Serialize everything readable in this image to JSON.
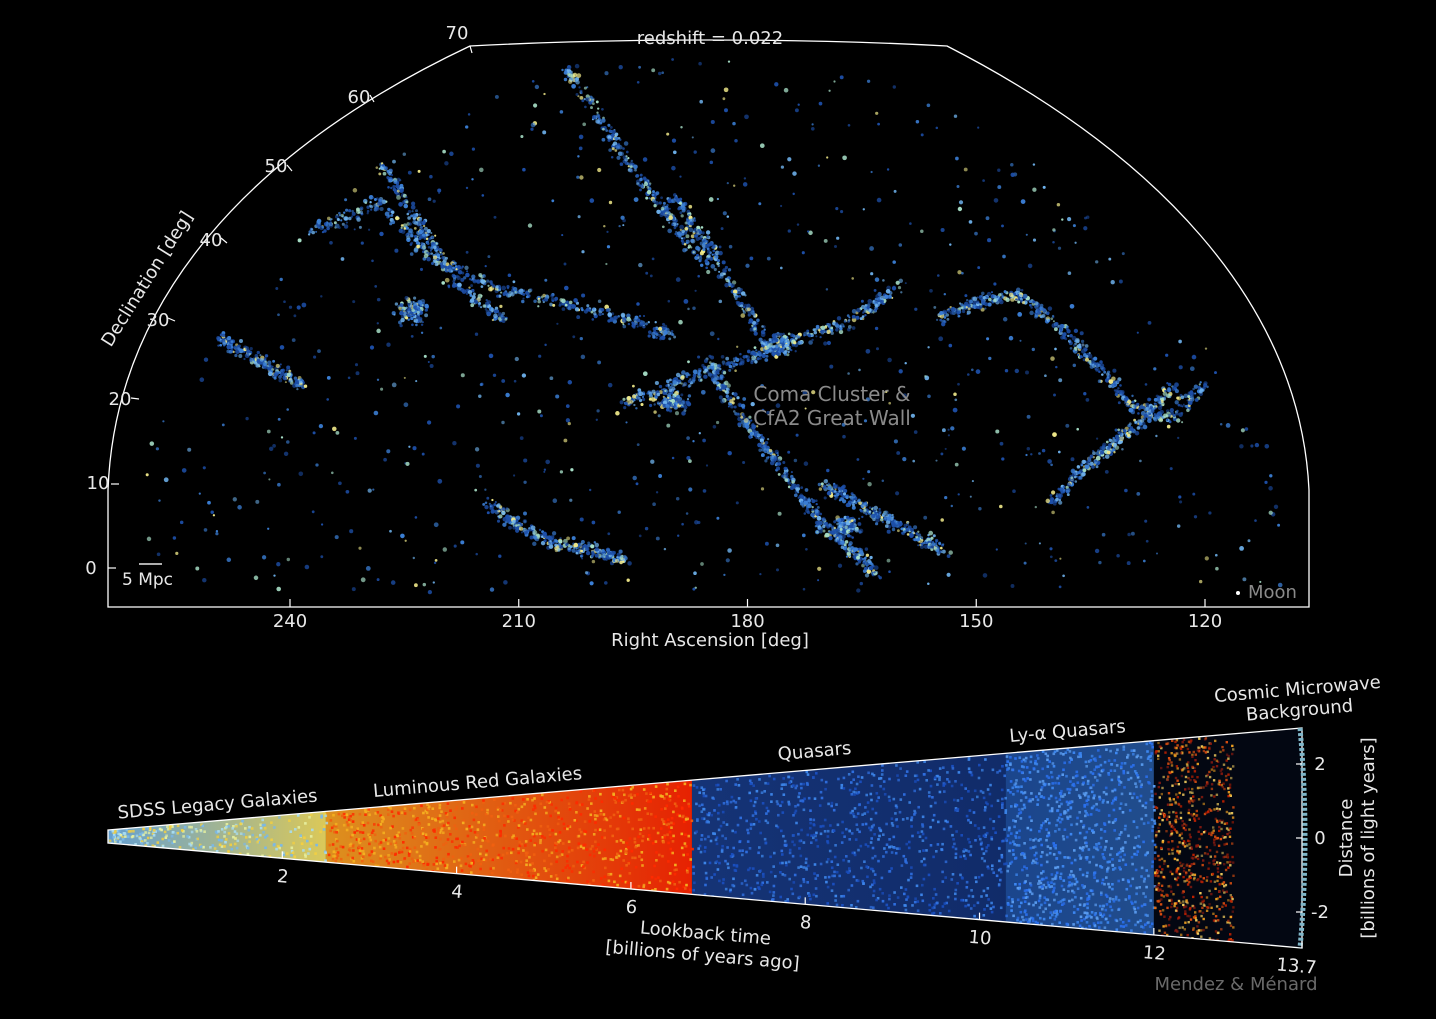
{
  "chart_data": [
    {
      "type": "scatter",
      "projection": "sky-wedge",
      "title": "redshift = 0.022",
      "xlabel": "Right Ascension [deg]",
      "ylabel": "Declination [deg]",
      "x_direction": "decreasing-left-to-right",
      "xlim": [
        265,
        105
      ],
      "ylim": [
        -5,
        70
      ],
      "xticks": [
        240,
        210,
        180,
        150,
        120
      ],
      "yticks": [
        0,
        10,
        20,
        30,
        40,
        50,
        60,
        70
      ],
      "grid": false,
      "point_colors": [
        "#1d4fa8",
        "#3b7fd6",
        "#6fb3ee",
        "#a8e0c8",
        "#f1ea8a"
      ],
      "filaments": [
        {
          "ra": [
            244,
            236,
            228,
            222,
            214,
            205,
            196,
            190
          ],
          "dec": [
            40,
            41,
            44,
            38,
            34,
            32,
            30,
            28
          ]
        },
        {
          "ra": [
            230,
            226,
            222,
            218,
            212
          ],
          "dec": [
            51,
            46,
            40,
            34,
            30
          ]
        },
        {
          "ra": [
            196,
            190,
            184,
            178,
            172,
            166,
            160
          ],
          "dec": [
            20,
            22,
            24,
            26,
            28,
            30,
            34
          ]
        },
        {
          "ra": [
            185,
            182,
            178,
            174,
            170,
            166,
            163
          ],
          "dec": [
            25,
            20,
            15,
            10,
            5,
            2,
            -1
          ]
        },
        {
          "ra": [
            205,
            200,
            195,
            190,
            185
          ],
          "dec": [
            62,
            55,
            48,
            42,
            36
          ]
        },
        {
          "ra": [
            190,
            186,
            182,
            178
          ],
          "dec": [
            45,
            40,
            34,
            28
          ]
        },
        {
          "ra": [
            155,
            150,
            145,
            140,
            135,
            130,
            125,
            120
          ],
          "dec": [
            30,
            32,
            33,
            30,
            25,
            20,
            18,
            22
          ]
        },
        {
          "ra": [
            250,
            246,
            242,
            238
          ],
          "dec": [
            28,
            26,
            24,
            22
          ]
        },
        {
          "ra": [
            214,
            210,
            205,
            200,
            196
          ],
          "dec": [
            8,
            5,
            3,
            2,
            1
          ]
        },
        {
          "ra": [
            170,
            166,
            162,
            158,
            154
          ],
          "dec": [
            10,
            8,
            6,
            4,
            2
          ]
        },
        {
          "ra": [
            140,
            136,
            132,
            128,
            124
          ],
          "dec": [
            8,
            12,
            15,
            18,
            22
          ]
        }
      ],
      "clusters": [
        {
          "ra": 176,
          "dec": 27,
          "spread": 2.5
        },
        {
          "ra": 190,
          "dec": 20,
          "spread": 2.5
        },
        {
          "ra": 224,
          "dec": 31,
          "spread": 2.5
        },
        {
          "ra": 167,
          "dec": 5,
          "spread": 2.0
        },
        {
          "ra": 204,
          "dec": 64,
          "spread": 1.5
        }
      ],
      "annotations": [
        {
          "text": "Coma Cluster &",
          "ra": 172,
          "dec": 19.5
        },
        {
          "text": "CfA2 Great Wall",
          "ra": 172,
          "dec": 16.5
        }
      ],
      "scale_bar_label": "5 Mpc",
      "legend_marker_label": "Moon"
    },
    {
      "type": "scatter",
      "projection": "lookback-cone",
      "xlabel_line1": "Lookback time",
      "xlabel_line2": "[billions of years ago]",
      "ylabel_line1": "Distance",
      "ylabel_line2": "[billions of light years]",
      "xlim": [
        0,
        13.7
      ],
      "ylim": [
        -3,
        3
      ],
      "xticks": [
        "2",
        "4",
        "6",
        "8",
        "10",
        "12",
        "13.7"
      ],
      "xtick_values": [
        2,
        4,
        6,
        8,
        10,
        12,
        13.7
      ],
      "yticks": [
        "2",
        "0",
        "-2"
      ],
      "ytick_values": [
        2,
        0,
        -2
      ],
      "regions": [
        {
          "label": "SDSS Legacy Galaxies",
          "from": 0,
          "to": 2.5,
          "colors": [
            "#7ab8e8",
            "#a8dcf0",
            "#e6f0a0",
            "#f5d040"
          ]
        },
        {
          "label": "Luminous Red Galaxies",
          "from": 2.5,
          "to": 6.7,
          "colors": [
            "#f5b020",
            "#f06010",
            "#ff2a00"
          ]
        },
        {
          "label": "Quasars",
          "from": 6.7,
          "to": 10.3,
          "colors": [
            "#2f6fe0",
            "#3d86ea",
            "#1a4fc0"
          ]
        },
        {
          "label": "Ly-α Quasars",
          "from": 10.3,
          "to": 12.0,
          "colors": [
            "#2a70ee",
            "#3d88f2",
            "#5a9cf0"
          ]
        }
      ],
      "cmb_label_line1": "Cosmic Microwave",
      "cmb_label_line2": "Background"
    }
  ],
  "credit": "Mendez & Ménard"
}
